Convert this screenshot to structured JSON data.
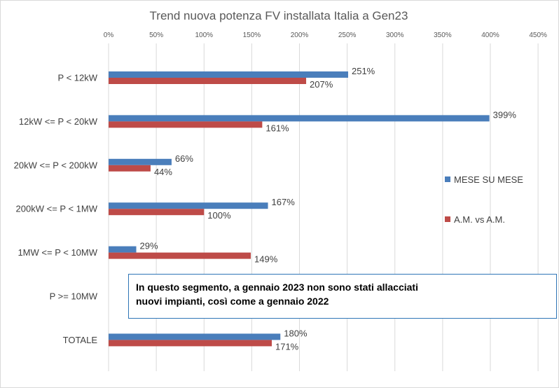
{
  "chart_data": {
    "type": "bar",
    "orientation": "horizontal",
    "title": "Trend nuova potenza FV installata Italia a Gen23",
    "categories": [
      "P < 12kW",
      "12kW <= P < 20kW",
      "20kW <= P < 200kW",
      "200kW <= P < 1MW",
      "1MW <= P < 10MW",
      "P >= 10MW",
      "TOTALE"
    ],
    "series": [
      {
        "name": "MESE SU  MESE",
        "color": "#4a7ebb",
        "values": [
          251,
          399,
          66,
          167,
          29,
          null,
          180
        ],
        "labels": [
          "251%",
          "399%",
          "66%",
          "167%",
          "29%",
          "",
          "180%"
        ]
      },
      {
        "name": "A.M. vs A.M.",
        "color": "#be4b48",
        "values": [
          207,
          161,
          44,
          100,
          149,
          null,
          171
        ],
        "labels": [
          "207%",
          "161%",
          "44%",
          "100%",
          "149%",
          "",
          "171%"
        ]
      }
    ],
    "xlim": [
      0,
      450
    ],
    "xticks": [
      0,
      50,
      100,
      150,
      200,
      250,
      300,
      350,
      400,
      450
    ],
    "xtick_labels": [
      "0%",
      "50%",
      "100%",
      "150%",
      "200%",
      "250%",
      "300%",
      "350%",
      "400%",
      "450%"
    ],
    "xaxis_position": "top",
    "grid": true,
    "legend_position": "right",
    "annotation": {
      "line1": "In questo segmento, a gennaio 2023 non sono stati allacciati",
      "line2": "nuovi impianti, così come a gennaio 2022"
    }
  }
}
